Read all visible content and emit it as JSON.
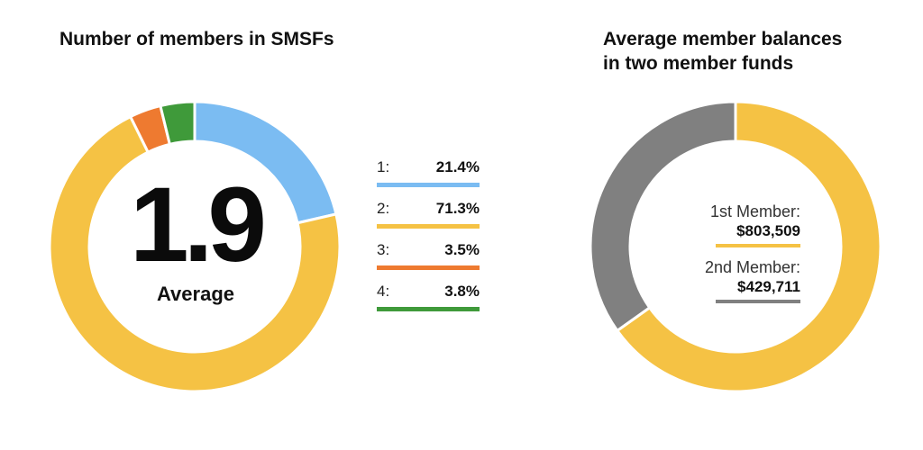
{
  "chart_data": [
    {
      "type": "pie",
      "title": "Number of members in SMSFs",
      "center_value": "1.9",
      "center_label": "Average",
      "slices": [
        {
          "label": "1:",
          "value": 21.4,
          "display": "21.4%",
          "color": "#7bbcf2"
        },
        {
          "label": "2:",
          "value": 71.3,
          "display": "71.3%",
          "color": "#f5c244"
        },
        {
          "label": "3:",
          "value": 3.5,
          "display": "3.5%",
          "color": "#ee7a30"
        },
        {
          "label": "4:",
          "value": 3.8,
          "display": "3.8%",
          "color": "#3f9a3a"
        }
      ]
    },
    {
      "type": "pie",
      "title_lines": [
        "Average member balances",
        "in two member funds"
      ],
      "slices": [
        {
          "label": "1st Member:",
          "value": 803509,
          "display": "$803,509",
          "color": "#f5c244"
        },
        {
          "label": "2nd Member:",
          "value": 429711,
          "display": "$429,711",
          "color": "#808080"
        }
      ]
    }
  ]
}
